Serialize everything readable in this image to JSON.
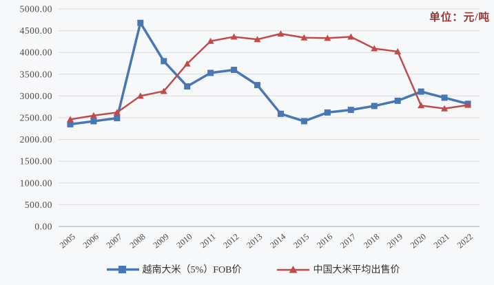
{
  "chart": {
    "unit_label": "单位：元/吨",
    "colors": {
      "background": "#f7f8fa",
      "gridline": "#dcdcdc",
      "axis_line": "#a6a6a6",
      "tick_text": "#4a4a4a",
      "unit_text": "#953735",
      "legend_text": "#333333"
    }
  },
  "chart_data": {
    "type": "line",
    "categories": [
      "2005",
      "2006",
      "2007",
      "2008",
      "2009",
      "2010",
      "2011",
      "2012",
      "2013",
      "2014",
      "2015",
      "2016",
      "2017",
      "2018",
      "2019",
      "2020",
      "2021",
      "2022"
    ],
    "series": [
      {
        "name": "越南大米（5%）FOB价",
        "marker": "square",
        "color": "#4777b4",
        "line_width": 3.5,
        "values": [
          2350,
          2420,
          2490,
          4680,
          3800,
          3220,
          3530,
          3600,
          3250,
          2590,
          2420,
          2620,
          2680,
          2770,
          2890,
          3100,
          2960,
          2820
        ]
      },
      {
        "name": "中国大米平均出售价",
        "marker": "triangle",
        "color": "#bf4c49",
        "line_width": 2.5,
        "values": [
          2460,
          2550,
          2620,
          3000,
          3110,
          3740,
          4260,
          4360,
          4300,
          4430,
          4340,
          4330,
          4360,
          4090,
          4020,
          2780,
          2710,
          2790
        ]
      }
    ],
    "title": "",
    "xlabel": "",
    "ylabel": "",
    "unit_annotation": "单位：元/吨",
    "ylim": [
      0,
      5000
    ],
    "y_tick_step": 500,
    "y_tick_labels": [
      "0.00",
      "500.00",
      "1000.00",
      "1500.00",
      "2000.00",
      "2500.00",
      "3000.00",
      "3500.00",
      "4000.00",
      "4500.00",
      "5000.00"
    ],
    "grid": true,
    "legend_position": "bottom",
    "x_label_rotation": -40
  }
}
